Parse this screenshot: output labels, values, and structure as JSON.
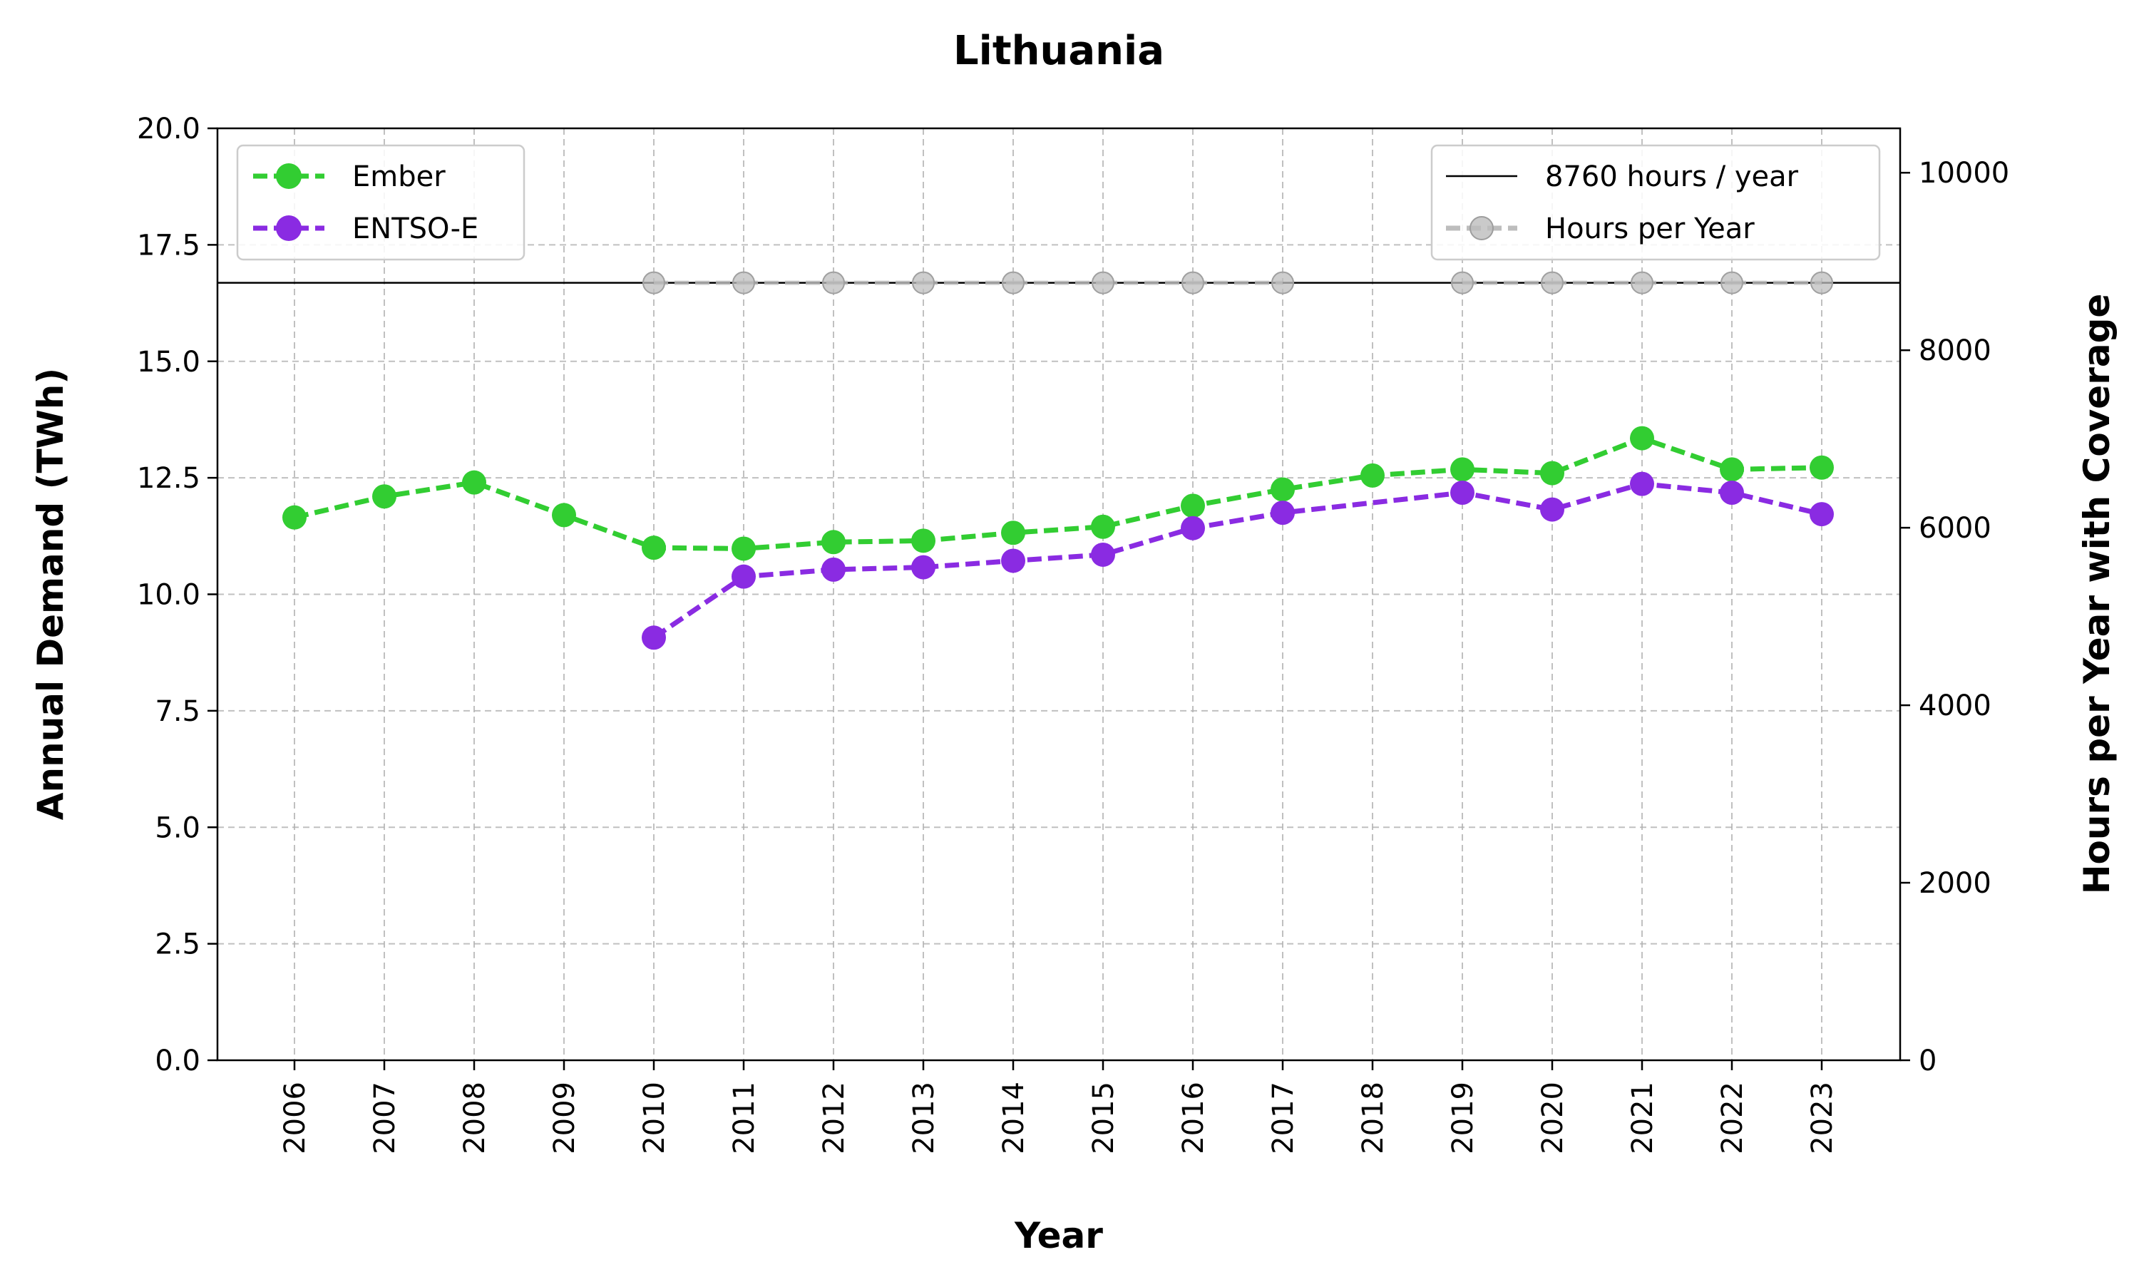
{
  "chart_data": {
    "type": "line",
    "title": "Lithuania",
    "xlabel": "Year",
    "ylabel": "Annual Demand (TWh)",
    "y2label": "Hours per Year with Coverage",
    "ylim": [
      0,
      20
    ],
    "y2lim": [
      0,
      10500
    ],
    "categories": [
      "2006",
      "2007",
      "2008",
      "2009",
      "2010",
      "2011",
      "2012",
      "2013",
      "2014",
      "2015",
      "2016",
      "2017",
      "2018",
      "2019",
      "2020",
      "2021",
      "2022",
      "2023"
    ],
    "y_ticks": [
      "0.0",
      "2.5",
      "5.0",
      "7.5",
      "10.0",
      "12.5",
      "15.0",
      "17.5",
      "20.0"
    ],
    "y2_ticks": [
      "0",
      "2000",
      "4000",
      "6000",
      "8000",
      "10000"
    ],
    "grid": true,
    "series": [
      {
        "name": "Ember",
        "axis": "left",
        "color": "#32cd32",
        "values": [
          11.65,
          12.1,
          12.4,
          11.7,
          11.0,
          10.98,
          11.12,
          11.15,
          11.32,
          11.45,
          11.9,
          12.25,
          12.55,
          12.68,
          12.6,
          13.35,
          12.68,
          12.72
        ]
      },
      {
        "name": "ENTSO-E",
        "axis": "left",
        "color": "#8a2be2",
        "values": [
          null,
          null,
          null,
          null,
          9.07,
          10.38,
          10.53,
          10.58,
          10.72,
          10.85,
          11.42,
          11.75,
          null,
          12.18,
          11.82,
          12.37,
          12.18,
          11.72
        ]
      }
    ],
    "reference_line": {
      "label": "8760 hours / year",
      "value": 8760,
      "axis": "right",
      "color": "#000000"
    },
    "hours_series": {
      "name": "Hours per Year",
      "axis": "right",
      "color": "#bdbdbd",
      "values": [
        null,
        null,
        null,
        null,
        8760,
        8760,
        8760,
        8760,
        8760,
        8760,
        8760,
        8760,
        null,
        8760,
        8760,
        8760,
        8760,
        8760
      ]
    },
    "legend_left": {
      "placement": "top-left",
      "entries": [
        "Ember",
        "ENTSO-E"
      ]
    },
    "legend_right": {
      "placement": "top-right",
      "entries": [
        "8760 hours / year",
        "Hours per Year"
      ]
    }
  }
}
